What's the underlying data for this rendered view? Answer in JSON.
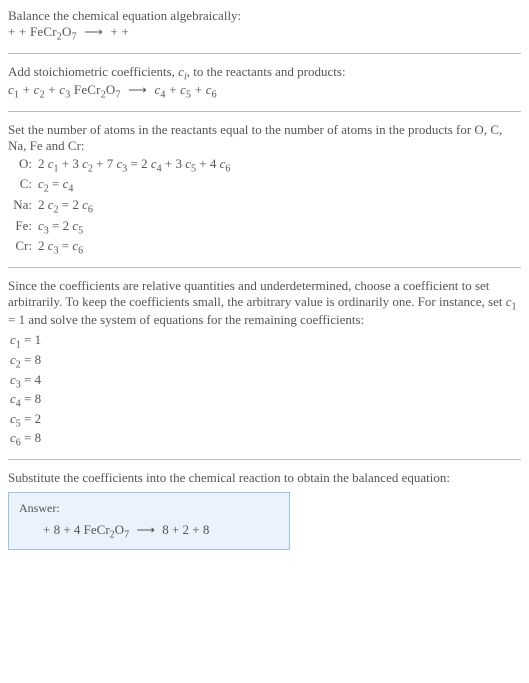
{
  "header": {
    "line1": "Balance the chemical equation algebraically:",
    "line2_prefix": " + + FeCr",
    "line2_sub1": "2",
    "line2_mid1": "O",
    "line2_sub2": "7",
    "line2_arrow": " ⟶ ",
    "line2_suffix": " + + "
  },
  "stoich": {
    "intro_a": "Add stoichiometric coefficients, ",
    "intro_ci": "c",
    "intro_ci_sub": "i",
    "intro_b": ", to the reactants and products:",
    "eq_c1": "c",
    "eq_c1s": "1",
    "eq_c2": "c",
    "eq_c2s": "2",
    "eq_c3": "c",
    "eq_c3s": "3",
    "eq_reagent_a": " FeCr",
    "eq_reagent_sub1": "2",
    "eq_reagent_b": "O",
    "eq_reagent_sub2": "7",
    "eq_arrow": " ⟶ ",
    "eq_c4": "c",
    "eq_c4s": "4",
    "eq_c5": "c",
    "eq_c5s": "5",
    "eq_c6": "c",
    "eq_c6s": "6",
    "plus": "  + "
  },
  "atoms": {
    "intro": "Set the number of atoms in the reactants equal to the number of atoms in the products for O, C, Na, Fe and Cr:",
    "rows": {
      "O_lbl": "O:",
      "O_val_a": "2 ",
      "O_c1": "c",
      "O_c1s": "1",
      "O_val_b": " + 3 ",
      "O_c2": "c",
      "O_c2s": "2",
      "O_val_c": " + 7 ",
      "O_c3": "c",
      "O_c3s": "3",
      "O_val_d": " = 2 ",
      "O_c4": "c",
      "O_c4s": "4",
      "O_val_e": " + 3 ",
      "O_c5": "c",
      "O_c5s": "5",
      "O_val_f": " + 4 ",
      "O_c6": "c",
      "O_c6s": "6",
      "C_lbl": "C:",
      "C_a": "c",
      "C_as": "2",
      "C_eq": " = ",
      "C_b": "c",
      "C_bs": "4",
      "Na_lbl": "Na:",
      "Na_a": "2 ",
      "Na_c2": "c",
      "Na_c2s": "2",
      "Na_eq": " = 2 ",
      "Na_c6": "c",
      "Na_c6s": "6",
      "Fe_lbl": "Fe:",
      "Fe_c3": "c",
      "Fe_c3s": "3",
      "Fe_eq": " = 2 ",
      "Fe_c5": "c",
      "Fe_c5s": "5",
      "Cr_lbl": "Cr:",
      "Cr_a": "2 ",
      "Cr_c3": "c",
      "Cr_c3s": "3",
      "Cr_eq": " = ",
      "Cr_c6": "c",
      "Cr_c6s": "6"
    }
  },
  "choose": {
    "p_a": "Since the coefficients are relative quantities and underdetermined, choose a coefficient to set arbitrarily. To keep the coefficients small, the arbitrary value is ordinarily one. For instance, set ",
    "p_c": "c",
    "p_cs": "1",
    "p_b": " = 1 and solve the system of equations for the remaining coefficients:",
    "c1_a": "c",
    "c1_s": "1",
    "c1_v": " = 1",
    "c2_a": "c",
    "c2_s": "2",
    "c2_v": " = 8",
    "c3_a": "c",
    "c3_s": "3",
    "c3_v": " = 4",
    "c4_a": "c",
    "c4_s": "4",
    "c4_v": " = 8",
    "c5_a": "c",
    "c5_s": "5",
    "c5_v": " = 2",
    "c6_a": "c",
    "c6_s": "6",
    "c6_v": " = 8"
  },
  "subst": {
    "text": "Substitute the coefficients into the chemical reaction to obtain the balanced equation:"
  },
  "answer": {
    "title": "Answer:",
    "eq_a": " + 8  + 4 FeCr",
    "eq_sub1": "2",
    "eq_b": "O",
    "eq_sub2": "7",
    "eq_arrow": " ⟶ ",
    "eq_c": "8  + 2  + 8 "
  }
}
